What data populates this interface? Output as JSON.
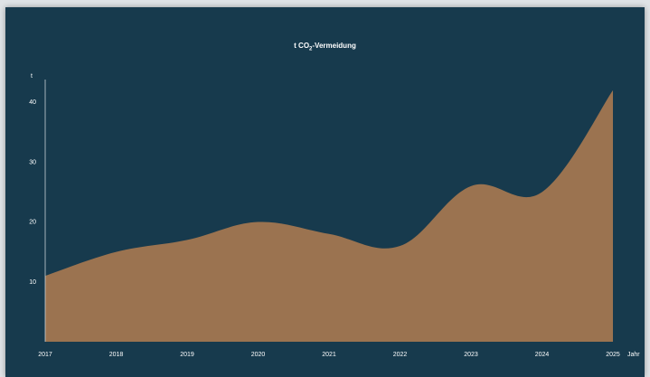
{
  "chart_data": {
    "type": "area",
    "title_main": "t CO",
    "title_sub": "2",
    "title_rest": "-Vermeidung",
    "ylabel": "t",
    "xlabel": "Jahr",
    "x": [
      "2017",
      "2018",
      "2019",
      "2020",
      "2021",
      "2022",
      "2023",
      "2024",
      "2025"
    ],
    "values": [
      11,
      15,
      17,
      20,
      18,
      16,
      26,
      25,
      42
    ],
    "yticks": [
      10,
      20,
      30,
      40
    ],
    "ylim": [
      0,
      45
    ],
    "colors": {
      "background": "#173a4d",
      "area": "#9b7350",
      "axis": "#c9d3d8",
      "text": "#ffffff"
    }
  }
}
